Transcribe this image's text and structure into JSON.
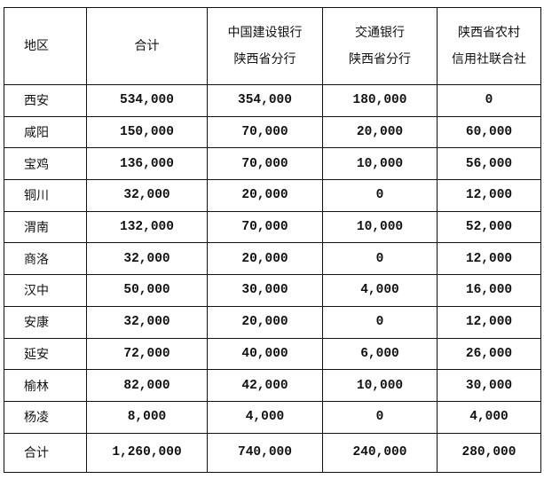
{
  "table": {
    "headers": [
      [
        "地区"
      ],
      [
        "合计"
      ],
      [
        "中国建设银行",
        "陕西省分行"
      ],
      [
        "交通银行",
        "陕西省分行"
      ],
      [
        "陕西省农村",
        "信用社联合社"
      ]
    ],
    "rows": [
      [
        "西安",
        "534,000",
        "354,000",
        "180,000",
        "0"
      ],
      [
        "咸阳",
        "150,000",
        "70,000",
        "20,000",
        "60,000"
      ],
      [
        "宝鸡",
        "136,000",
        "70,000",
        "10,000",
        "56,000"
      ],
      [
        "铜川",
        "32,000",
        "20,000",
        "0",
        "12,000"
      ],
      [
        "渭南",
        "132,000",
        "70,000",
        "10,000",
        "52,000"
      ],
      [
        "商洛",
        "32,000",
        "20,000",
        "0",
        "12,000"
      ],
      [
        "汉中",
        "50,000",
        "30,000",
        "4,000",
        "16,000"
      ],
      [
        "安康",
        "32,000",
        "20,000",
        "0",
        "12,000"
      ],
      [
        "延安",
        "72,000",
        "40,000",
        "6,000",
        "26,000"
      ],
      [
        "榆林",
        "82,000",
        "42,000",
        "10,000",
        "30,000"
      ],
      [
        "杨凌",
        "8,000",
        "4,000",
        "0",
        "4,000"
      ]
    ],
    "total": [
      "合计",
      "1,260,000",
      "740,000",
      "240,000",
      "280,000"
    ]
  }
}
